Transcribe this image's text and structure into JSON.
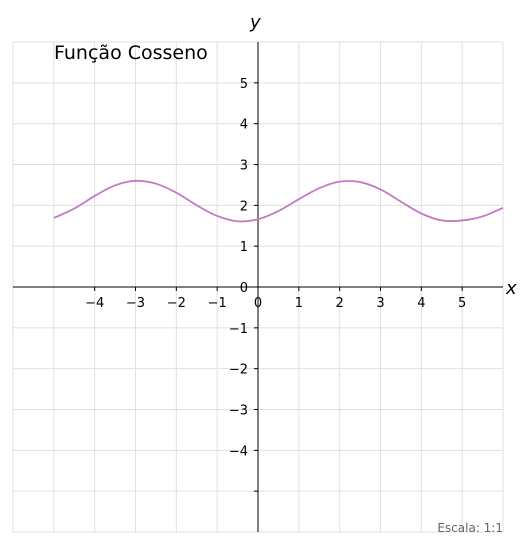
{
  "chart_data": {
    "type": "line",
    "title": "Função Cosseno",
    "xlabel": "x",
    "ylabel": "y",
    "xlim": [
      -6,
      6
    ],
    "ylim": [
      -6,
      6
    ],
    "grid": true,
    "x_ticks": [
      -4,
      -3,
      -2,
      -1,
      0,
      1,
      2,
      3,
      4,
      5
    ],
    "y_ticks": [
      -4,
      -3,
      -2,
      -1,
      0,
      1,
      2,
      3,
      4,
      5
    ],
    "x_tick_labels": [
      "−4",
      "−3",
      "−2",
      "−1",
      "0",
      "1",
      "2",
      "3",
      "4",
      "5"
    ],
    "y_tick_labels": [
      "−4",
      "−3",
      "−2",
      "−1",
      "0",
      "1",
      "2",
      "3",
      "4",
      "5"
    ],
    "series": [
      {
        "color": "#c27bc2",
        "x": [
          -5,
          -4.5,
          -4,
          -3.5,
          -3,
          -2.5,
          -2,
          -1.5,
          -1,
          -0.5,
          0,
          0.5,
          1,
          1.5,
          2,
          2.5,
          3,
          3.5,
          4,
          4.5,
          5,
          5.5,
          6
        ],
        "y": [
          1.69,
          1.92,
          2.23,
          2.49,
          2.6,
          2.53,
          2.31,
          2.0,
          1.74,
          1.61,
          1.66,
          1.86,
          2.15,
          2.42,
          2.58,
          2.57,
          2.39,
          2.09,
          1.8,
          1.63,
          1.63,
          1.73,
          1.94
        ]
      }
    ],
    "footnote": "Escala: 1:1"
  }
}
